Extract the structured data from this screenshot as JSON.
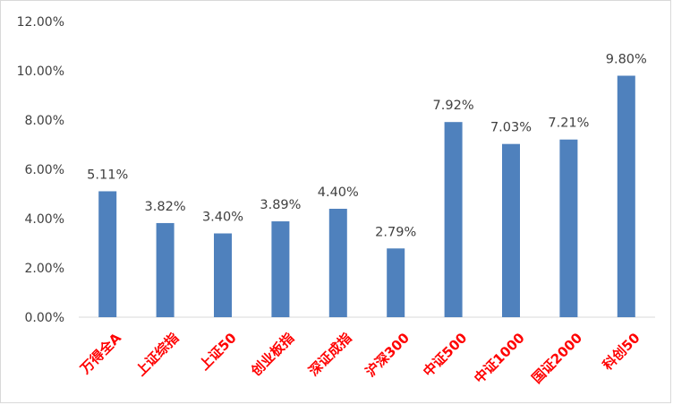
{
  "chart_data": {
    "type": "bar",
    "categories": [
      "万得全A",
      "上证综指",
      "上证50",
      "创业板指",
      "深证成指",
      "沪深300",
      "中证500",
      "中证1000",
      "国证2000",
      "科创50"
    ],
    "values": [
      5.11,
      3.82,
      3.4,
      3.89,
      4.4,
      2.79,
      7.92,
      7.03,
      7.21,
      9.8
    ],
    "value_labels": [
      "5.11%",
      "3.82%",
      "3.40%",
      "3.89%",
      "4.40%",
      "2.79%",
      "7.92%",
      "7.03%",
      "7.21%",
      "9.80%"
    ],
    "y_ticks": [
      0,
      2,
      4,
      6,
      8,
      10,
      12
    ],
    "y_tick_labels": [
      "0.00%",
      "2.00%",
      "4.00%",
      "6.00%",
      "8.00%",
      "10.00%",
      "12.00%"
    ],
    "ylim": [
      0,
      12
    ],
    "title": "",
    "xlabel": "",
    "ylabel": "",
    "grid": false,
    "legend": "none",
    "colors": {
      "bar": "#4f81bd",
      "category_label": "#ff0000",
      "axis_text": "#404040",
      "axis_line": "#d9d9d9"
    }
  }
}
